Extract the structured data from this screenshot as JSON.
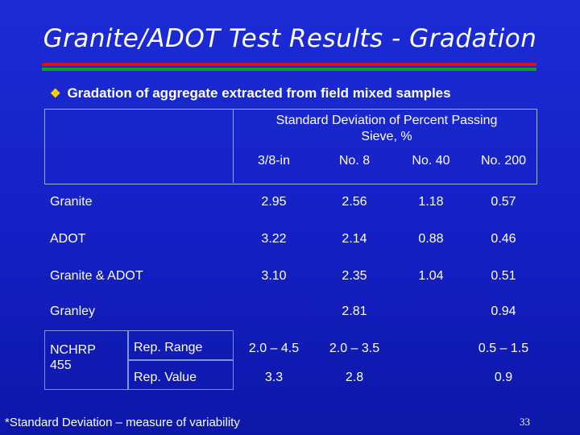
{
  "slide": {
    "title": "Granite/ADOT Test Results - Gradation",
    "bullet": "Gradation of aggregate extracted from field mixed samples",
    "page_number": "33",
    "footer": "*Standard Deviation – measure of variability"
  },
  "table": {
    "group_header_line1": "Standard Deviation of Percent Passing",
    "group_header_line2": "Sieve, %",
    "columns": [
      "3/8-in",
      "No. 8",
      "No. 40",
      "No. 200"
    ],
    "rows": [
      {
        "label": "Granite",
        "values": [
          "2.95",
          "2.56",
          "1.18",
          "0.57"
        ]
      },
      {
        "label": "ADOT",
        "values": [
          "3.22",
          "2.14",
          "0.88",
          "0.46"
        ]
      },
      {
        "label": "Granite & ADOT",
        "values": [
          "3.10",
          "2.35",
          "1.04",
          "0.51"
        ]
      },
      {
        "label": "Granley",
        "values": [
          "",
          "2.81",
          "",
          "0.94"
        ]
      }
    ],
    "nchrp_label_line1": "NCHRP",
    "nchrp_label_line2": "455",
    "nchrp_rows": [
      {
        "label": "Rep. Range",
        "values": [
          "2.0 – 4.5",
          "2.0 – 3.5",
          "",
          "0.5 – 1.5"
        ]
      },
      {
        "label": "Rep. Value",
        "values": [
          "3.3",
          "2.8",
          "",
          "0.9"
        ]
      }
    ]
  }
}
